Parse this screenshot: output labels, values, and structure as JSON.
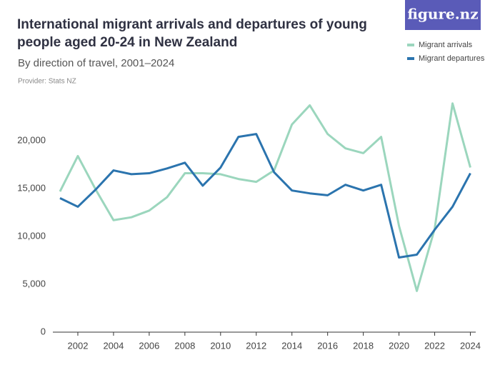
{
  "brand": "figure.nz",
  "chart_data": {
    "type": "line",
    "title": "International migrant arrivals and departures of young people aged 20-24 in New Zealand",
    "subtitle": "By direction of travel, 2001–2024",
    "provider": "Provider: Stats NZ",
    "x": [
      2001,
      2002,
      2003,
      2004,
      2005,
      2006,
      2007,
      2008,
      2009,
      2010,
      2011,
      2012,
      2013,
      2014,
      2015,
      2016,
      2017,
      2018,
      2019,
      2020,
      2021,
      2022,
      2023,
      2024
    ],
    "series": [
      {
        "name": "Migrant arrivals",
        "color": "#9bd6bd",
        "values": [
          14700,
          18400,
          14900,
          11700,
          12000,
          12700,
          14100,
          16600,
          16600,
          16500,
          16000,
          15700,
          16900,
          21700,
          23700,
          20700,
          19200,
          18700,
          20400,
          11100,
          4300,
          10800,
          23900,
          17200
        ]
      },
      {
        "name": "Migrant departures",
        "color": "#2b74ae",
        "values": [
          14000,
          13100,
          14900,
          16900,
          16500,
          16600,
          17100,
          17700,
          15300,
          17200,
          20400,
          20700,
          16700,
          14800,
          14500,
          14300,
          15400,
          14800,
          15400,
          7800,
          8100,
          10700,
          13100,
          16600
        ]
      }
    ],
    "xlim": [
      2000.6,
      2024.3
    ],
    "xticks": [
      2002,
      2004,
      2006,
      2008,
      2010,
      2012,
      2014,
      2016,
      2018,
      2020,
      2022,
      2024
    ],
    "ylim": [
      0,
      25000
    ],
    "yticks": [
      0,
      {
        "value": 5000,
        "label": "5,000"
      },
      {
        "value": 10000,
        "label": "10,000"
      },
      {
        "value": 15000,
        "label": "15,000"
      },
      {
        "value": 20000,
        "label": "20,000"
      }
    ],
    "legend": "top-right"
  }
}
